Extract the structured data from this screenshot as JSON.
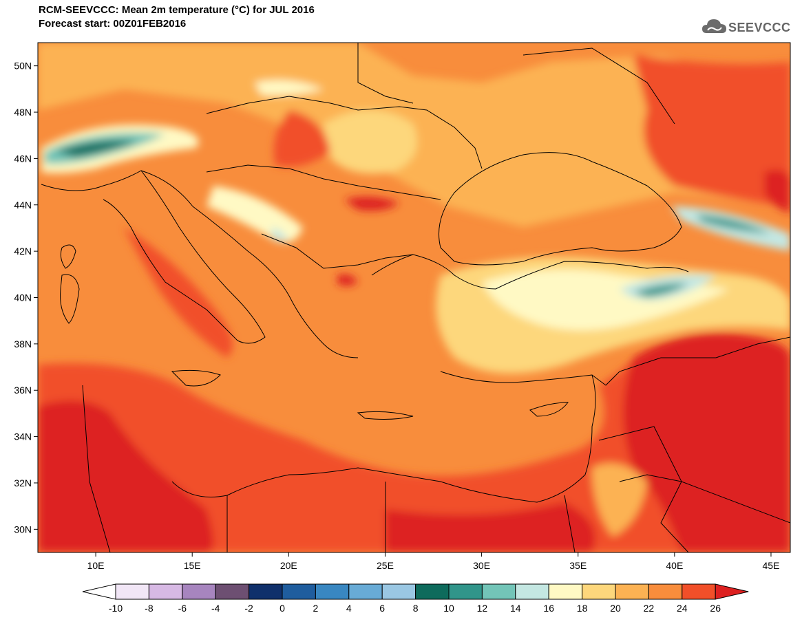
{
  "header": {
    "title_line1": "RCM-SEEVCCC: Mean 2m temperature (°C) for JUL 2016",
    "title_line2": "Forecast start: 00Z01FEB2016",
    "logo_text": "SEEVCCC"
  },
  "map": {
    "lon_range": [
      7,
      46
    ],
    "lat_range": [
      29,
      51
    ],
    "lat_ticks": [
      "50N",
      "48N",
      "46N",
      "44N",
      "42N",
      "40N",
      "38N",
      "36N",
      "34N",
      "32N",
      "30N"
    ],
    "lat_values": [
      50,
      48,
      46,
      44,
      42,
      40,
      38,
      36,
      34,
      32,
      30
    ],
    "lon_ticks": [
      "10E",
      "15E",
      "20E",
      "25E",
      "30E",
      "35E",
      "40E",
      "45E"
    ],
    "lon_values": [
      10,
      15,
      20,
      25,
      30,
      35,
      40,
      45
    ]
  },
  "colorbar": {
    "labels": [
      "-10",
      "-8",
      "-6",
      "-4",
      "-2",
      "0",
      "2",
      "4",
      "6",
      "8",
      "10",
      "12",
      "14",
      "16",
      "18",
      "20",
      "22",
      "24",
      "26"
    ],
    "colors": [
      "#f1e6f6",
      "#d7b9e4",
      "#a785bf",
      "#6d4f72",
      "#10306b",
      "#1f5d9e",
      "#3987c1",
      "#68abd6",
      "#9ac7e3",
      "#0e6b5c",
      "#31958a",
      "#73c5b8",
      "#c4e7e2",
      "#fff9c4",
      "#fdd77c",
      "#fcb253",
      "#f88d3c",
      "#f14f29"
    ],
    "under_color": "#ffffff",
    "over_color": "#dd2020"
  }
}
